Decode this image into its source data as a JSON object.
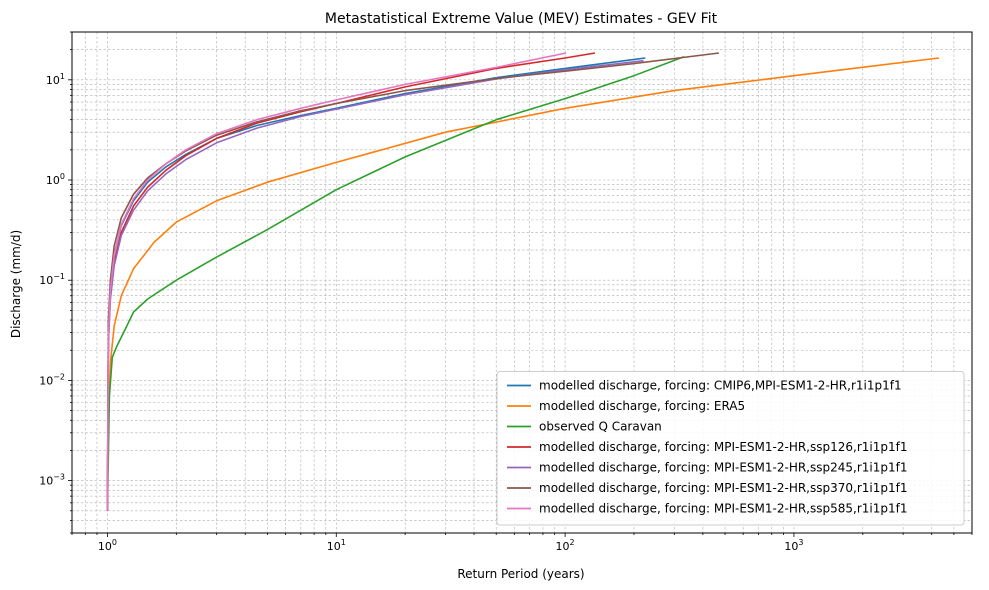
{
  "chart_data": {
    "type": "line",
    "title": "Metastatistical Extreme Value (MEV) Estimates - GEV Fit",
    "xlabel": "Return Period (years)",
    "ylabel": "Discharge (mm/d)",
    "xscale": "log",
    "yscale": "log",
    "xlim": [
      0.7,
      6000
    ],
    "ylim": [
      0.0003,
      30
    ],
    "grid": true,
    "legend_position": "lower-right",
    "x_ticks": [
      {
        "value": 1,
        "base": "10",
        "exp": "0"
      },
      {
        "value": 10,
        "base": "10",
        "exp": "1"
      },
      {
        "value": 100,
        "base": "10",
        "exp": "2"
      },
      {
        "value": 1000,
        "base": "10",
        "exp": "3"
      }
    ],
    "y_ticks": [
      {
        "value": 0.001,
        "base": "10",
        "exp": "−3"
      },
      {
        "value": 0.01,
        "base": "10",
        "exp": "−2"
      },
      {
        "value": 0.1,
        "base": "10",
        "exp": "−1"
      },
      {
        "value": 1,
        "base": "10",
        "exp": "0"
      },
      {
        "value": 10,
        "base": "10",
        "exp": "1"
      }
    ],
    "series": [
      {
        "name": "modelled discharge, forcing: CMIP6,MPI-ESM1-2-HR,r1i1p1f1",
        "color": "#1f77b4",
        "x": [
          1.0,
          1.01,
          1.03,
          1.07,
          1.15,
          1.3,
          1.5,
          1.8,
          2.2,
          3.0,
          4.5,
          7,
          10,
          20,
          50,
          100,
          224
        ],
        "y": [
          0.0005,
          0.03,
          0.08,
          0.18,
          0.35,
          0.62,
          0.95,
          1.35,
          1.8,
          2.6,
          3.5,
          4.4,
          5.2,
          7.3,
          10.5,
          13.0,
          16.5
        ]
      },
      {
        "name": "modelled discharge, forcing: ERA5",
        "color": "#ff7f0e",
        "x": [
          1.0,
          1.01,
          1.03,
          1.07,
          1.15,
          1.3,
          1.6,
          2.0,
          3.0,
          5.0,
          10,
          30,
          100,
          300,
          1000,
          4300
        ],
        "y": [
          0.0005,
          0.005,
          0.015,
          0.035,
          0.07,
          0.13,
          0.24,
          0.38,
          0.62,
          0.95,
          1.5,
          3.0,
          5.2,
          7.8,
          11.0,
          16.5
        ]
      },
      {
        "name": "observed Q Caravan",
        "color": "#2ca02c",
        "x": [
          1.0,
          1.02,
          1.05,
          1.1,
          1.2,
          1.3,
          1.5,
          2.0,
          3.0,
          5.0,
          10,
          20,
          50,
          100,
          200,
          330
        ],
        "y": [
          0.0005,
          0.007,
          0.017,
          0.022,
          0.033,
          0.048,
          0.065,
          0.1,
          0.17,
          0.32,
          0.8,
          1.7,
          4.0,
          6.5,
          11.0,
          17.0
        ]
      },
      {
        "name": "modelled discharge, forcing: MPI-ESM1-2-HR,ssp126,r1i1p1f1",
        "color": "#d62728",
        "x": [
          1.0,
          1.01,
          1.03,
          1.07,
          1.15,
          1.3,
          1.5,
          1.8,
          2.2,
          3.0,
          4.5,
          7,
          10,
          20,
          50,
          100,
          135
        ],
        "y": [
          0.0005,
          0.025,
          0.07,
          0.15,
          0.3,
          0.55,
          0.85,
          1.25,
          1.75,
          2.6,
          3.7,
          4.8,
          5.8,
          8.5,
          13.0,
          16.5,
          18.5
        ]
      },
      {
        "name": "modelled discharge, forcing: MPI-ESM1-2-HR,ssp245,r1i1p1f1",
        "color": "#9467bd",
        "x": [
          1.0,
          1.01,
          1.03,
          1.07,
          1.15,
          1.3,
          1.5,
          1.8,
          2.2,
          3.0,
          4.5,
          7,
          10,
          20,
          50,
          100,
          220
        ],
        "y": [
          0.0005,
          0.025,
          0.065,
          0.14,
          0.28,
          0.5,
          0.78,
          1.15,
          1.6,
          2.35,
          3.3,
          4.3,
          5.1,
          7.1,
          10.2,
          12.6,
          15.5
        ]
      },
      {
        "name": "modelled discharge, forcing: MPI-ESM1-2-HR,ssp370,r1i1p1f1",
        "color": "#8c564b",
        "x": [
          1.0,
          1.01,
          1.03,
          1.07,
          1.15,
          1.3,
          1.5,
          1.8,
          2.2,
          3.0,
          4.5,
          7,
          10,
          20,
          50,
          100,
          200,
          470
        ],
        "y": [
          0.0005,
          0.04,
          0.1,
          0.22,
          0.42,
          0.72,
          1.05,
          1.45,
          1.95,
          2.8,
          3.8,
          4.9,
          5.8,
          7.8,
          10.3,
          12.2,
          14.5,
          18.5
        ]
      },
      {
        "name": "modelled discharge, forcing: MPI-ESM1-2-HR,ssp585,r1i1p1f1",
        "color": "#e377c2",
        "x": [
          1.0,
          1.01,
          1.03,
          1.07,
          1.15,
          1.3,
          1.5,
          1.8,
          2.2,
          3.0,
          4.5,
          7,
          10,
          20,
          50,
          101
        ],
        "y": [
          0.0005,
          0.03,
          0.08,
          0.18,
          0.36,
          0.65,
          1.0,
          1.45,
          2.0,
          2.9,
          4.0,
          5.2,
          6.3,
          9.0,
          13.3,
          18.5
        ]
      }
    ]
  }
}
